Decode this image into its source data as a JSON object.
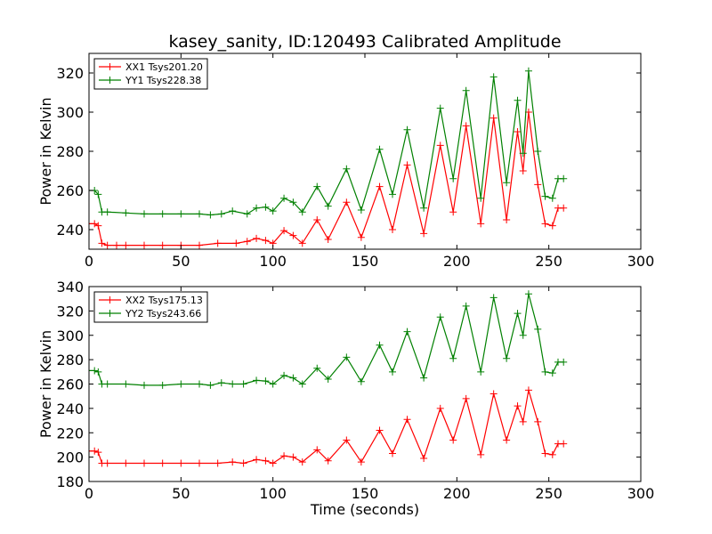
{
  "figure": {
    "title": "kasey_sanity, ID:120493 Calibrated Amplitude",
    "xlabel": "Time (seconds)"
  },
  "chart_data": [
    {
      "type": "line",
      "title": "kasey_sanity, ID:120493 Calibrated Amplitude",
      "xlabel": "",
      "ylabel": "Power in Kelvin",
      "xlim": [
        0,
        300
      ],
      "ylim": [
        230,
        330
      ],
      "xticks": [
        0,
        50,
        100,
        150,
        200,
        250,
        300
      ],
      "yticks": [
        240,
        260,
        280,
        300,
        320
      ],
      "legend": {
        "placement": "top-left"
      },
      "grid": false,
      "marker": "+",
      "series": [
        {
          "name": "XX1 Tsys201.20",
          "color": "#ff0000",
          "points": [
            [
              0,
              243
            ],
            [
              3,
              243
            ],
            [
              5,
              242
            ],
            [
              7,
              233
            ],
            [
              10,
              232
            ],
            [
              15,
              232
            ],
            [
              20,
              232
            ],
            [
              30,
              232
            ],
            [
              40,
              232
            ],
            [
              50,
              232
            ],
            [
              60,
              232
            ],
            [
              70,
              233
            ],
            [
              80,
              233
            ],
            [
              86,
              234
            ],
            [
              91,
              235.5
            ],
            [
              96,
              234.5
            ],
            [
              100,
              233
            ],
            [
              106,
              239.5
            ],
            [
              111,
              237
            ],
            [
              116,
              233
            ],
            [
              124,
              245
            ],
            [
              130,
              235
            ],
            [
              140,
              254
            ],
            [
              148,
              236
            ],
            [
              158,
              262
            ],
            [
              165,
              240
            ],
            [
              173,
              273
            ],
            [
              182,
              238
            ],
            [
              191,
              283
            ],
            [
              198,
              249
            ],
            [
              205,
              293
            ],
            [
              213,
              243
            ],
            [
              220,
              297
            ],
            [
              227,
              245
            ],
            [
              233,
              290
            ],
            [
              236,
              270
            ],
            [
              239,
              300
            ],
            [
              244,
              263
            ],
            [
              248,
              243
            ],
            [
              252,
              242
            ],
            [
              255,
              251
            ],
            [
              258,
              251
            ]
          ]
        },
        {
          "name": "YY1 Tsys228.38",
          "color": "#008000",
          "points": [
            [
              0,
              260
            ],
            [
              3,
              260
            ],
            [
              5,
              258
            ],
            [
              7,
              249
            ],
            [
              10,
              249
            ],
            [
              20,
              248.5
            ],
            [
              30,
              248
            ],
            [
              40,
              248
            ],
            [
              50,
              248
            ],
            [
              60,
              248
            ],
            [
              66,
              247.5
            ],
            [
              72,
              248
            ],
            [
              78,
              249.5
            ],
            [
              86,
              248
            ],
            [
              91,
              251
            ],
            [
              96,
              251.5
            ],
            [
              100,
              249.5
            ],
            [
              106,
              256
            ],
            [
              111,
              254
            ],
            [
              116,
              249
            ],
            [
              124,
              262
            ],
            [
              130,
              252
            ],
            [
              140,
              271
            ],
            [
              148,
              250
            ],
            [
              158,
              281
            ],
            [
              165,
              258
            ],
            [
              173,
              291
            ],
            [
              182,
              251
            ],
            [
              191,
              302
            ],
            [
              198,
              266
            ],
            [
              205,
              311
            ],
            [
              213,
              256
            ],
            [
              220,
              318
            ],
            [
              227,
              264
            ],
            [
              233,
              306
            ],
            [
              236,
              279
            ],
            [
              239,
              321
            ],
            [
              244,
              280
            ],
            [
              248,
              257
            ],
            [
              252,
              256
            ],
            [
              255,
              266
            ],
            [
              258,
              266
            ]
          ]
        }
      ]
    },
    {
      "type": "line",
      "title": "",
      "xlabel": "Time (seconds)",
      "ylabel": "Power in Kelvin",
      "xlim": [
        0,
        300
      ],
      "ylim": [
        180,
        340
      ],
      "xticks": [
        0,
        50,
        100,
        150,
        200,
        250,
        300
      ],
      "yticks": [
        180,
        200,
        220,
        240,
        260,
        280,
        300,
        320,
        340
      ],
      "legend": {
        "placement": "top-left"
      },
      "grid": false,
      "marker": "+",
      "series": [
        {
          "name": "XX2 Tsys175.13",
          "color": "#ff0000",
          "points": [
            [
              0,
              205
            ],
            [
              3,
              205
            ],
            [
              5,
              204
            ],
            [
              7,
              195
            ],
            [
              10,
              195
            ],
            [
              20,
              195
            ],
            [
              30,
              195
            ],
            [
              40,
              195
            ],
            [
              50,
              195
            ],
            [
              60,
              195
            ],
            [
              70,
              195
            ],
            [
              78,
              196
            ],
            [
              84,
              195
            ],
            [
              91,
              198
            ],
            [
              96,
              197
            ],
            [
              100,
              195
            ],
            [
              106,
              201
            ],
            [
              111,
              200
            ],
            [
              116,
              196
            ],
            [
              124,
              206
            ],
            [
              130,
              197
            ],
            [
              140,
              214
            ],
            [
              148,
              196
            ],
            [
              158,
              222
            ],
            [
              165,
              203
            ],
            [
              173,
              231
            ],
            [
              182,
              199
            ],
            [
              191,
              240
            ],
            [
              198,
              214
            ],
            [
              205,
              248
            ],
            [
              213,
              202
            ],
            [
              220,
              252
            ],
            [
              227,
              214
            ],
            [
              233,
              242
            ],
            [
              236,
              229
            ],
            [
              239,
              255
            ],
            [
              244,
              229
            ],
            [
              248,
              203
            ],
            [
              252,
              202
            ],
            [
              255,
              211
            ],
            [
              258,
              211
            ]
          ]
        },
        {
          "name": "YY2 Tsys243.66",
          "color": "#008000",
          "points": [
            [
              0,
              271
            ],
            [
              3,
              271
            ],
            [
              5,
              270
            ],
            [
              7,
              260
            ],
            [
              10,
              260
            ],
            [
              20,
              260
            ],
            [
              30,
              259
            ],
            [
              40,
              259
            ],
            [
              50,
              260
            ],
            [
              60,
              260
            ],
            [
              66,
              259
            ],
            [
              72,
              261
            ],
            [
              78,
              260
            ],
            [
              84,
              260
            ],
            [
              91,
              263
            ],
            [
              96,
              262.5
            ],
            [
              100,
              260
            ],
            [
              106,
              267
            ],
            [
              111,
              265
            ],
            [
              116,
              260
            ],
            [
              124,
              273
            ],
            [
              130,
              264
            ],
            [
              140,
              282
            ],
            [
              148,
              262
            ],
            [
              158,
              292
            ],
            [
              165,
              270
            ],
            [
              173,
              303
            ],
            [
              182,
              265
            ],
            [
              191,
              315
            ],
            [
              198,
              281
            ],
            [
              205,
              324
            ],
            [
              213,
              270
            ],
            [
              220,
              331
            ],
            [
              227,
              281
            ],
            [
              233,
              318
            ],
            [
              236,
              300
            ],
            [
              239,
              334
            ],
            [
              244,
              305
            ],
            [
              248,
              270
            ],
            [
              252,
              269
            ],
            [
              255,
              278
            ],
            [
              258,
              278
            ]
          ]
        }
      ]
    }
  ]
}
